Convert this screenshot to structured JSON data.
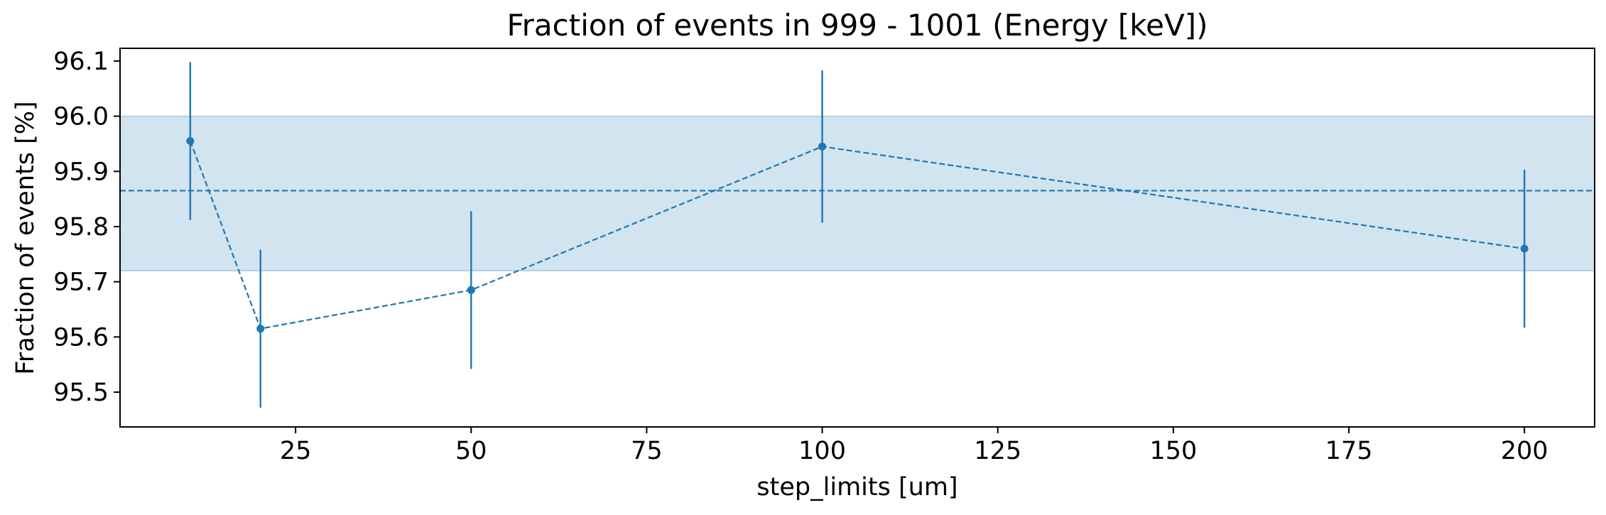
{
  "chart_data": {
    "type": "line",
    "title": "Fraction of events in 999 - 1001 (Energy [keV])",
    "xlabel": "step_limits [um]",
    "ylabel": "Fraction of events [%]",
    "xlim": [
      0,
      210
    ],
    "ylim": [
      95.437,
      96.123
    ],
    "xticks": [
      25,
      50,
      75,
      100,
      125,
      150,
      175,
      200
    ],
    "yticks": [
      95.5,
      95.6,
      95.7,
      95.8,
      95.9,
      96.0,
      96.1
    ],
    "series": [
      {
        "x": [
          10,
          20,
          50,
          100,
          200
        ],
        "values": [
          95.955,
          95.615,
          95.685,
          95.945,
          95.76
        ],
        "errors": [
          0.143,
          0.143,
          0.143,
          0.138,
          0.143
        ],
        "line_style": "dashed",
        "marker": "circle",
        "color": "#1f77b4"
      }
    ],
    "mean_line": {
      "y": 95.865,
      "style": "dashed",
      "color": "#1f77b4"
    },
    "band": {
      "y_low": 95.72,
      "y_high": 96.0,
      "color": "#1f77b4",
      "opacity": 0.2
    },
    "grid": false,
    "legend": "none"
  }
}
